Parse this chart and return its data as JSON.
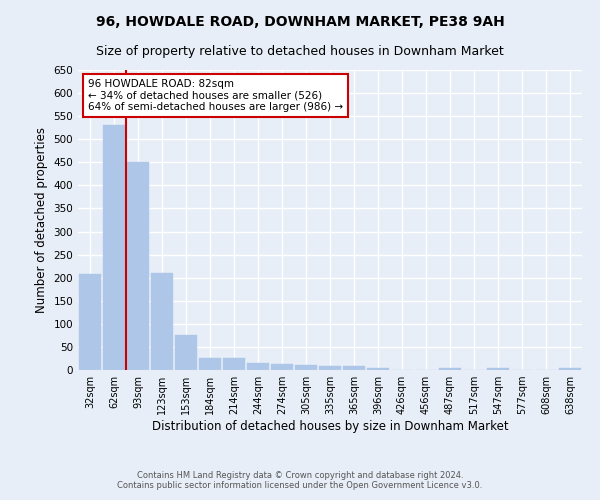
{
  "title": "96, HOWDALE ROAD, DOWNHAM MARKET, PE38 9AH",
  "subtitle": "Size of property relative to detached houses in Downham Market",
  "xlabel": "Distribution of detached houses by size in Downham Market",
  "ylabel": "Number of detached properties",
  "categories": [
    "32sqm",
    "62sqm",
    "93sqm",
    "123sqm",
    "153sqm",
    "184sqm",
    "214sqm",
    "244sqm",
    "274sqm",
    "305sqm",
    "335sqm",
    "365sqm",
    "396sqm",
    "426sqm",
    "456sqm",
    "487sqm",
    "517sqm",
    "547sqm",
    "577sqm",
    "608sqm",
    "638sqm"
  ],
  "values": [
    207,
    530,
    450,
    210,
    75,
    27,
    27,
    15,
    12,
    10,
    8,
    8,
    5,
    0,
    0,
    5,
    0,
    5,
    0,
    0,
    5
  ],
  "bar_color": "#aec6e8",
  "bar_edge_color": "#aec6e8",
  "vline_x": 1.5,
  "vline_color": "#cc0000",
  "annotation_text": "96 HOWDALE ROAD: 82sqm\n← 34% of detached houses are smaller (526)\n64% of semi-detached houses are larger (986) →",
  "annotation_box_color": "white",
  "annotation_box_edge_color": "#cc0000",
  "ylim": [
    0,
    650
  ],
  "yticks": [
    0,
    50,
    100,
    150,
    200,
    250,
    300,
    350,
    400,
    450,
    500,
    550,
    600,
    650
  ],
  "background_color": "#e8eef7",
  "grid_color": "white",
  "footer_line1": "Contains HM Land Registry data © Crown copyright and database right 2024.",
  "footer_line2": "Contains public sector information licensed under the Open Government Licence v3.0.",
  "title_fontsize": 10,
  "subtitle_fontsize": 9,
  "xlabel_fontsize": 8.5,
  "ylabel_fontsize": 8.5
}
